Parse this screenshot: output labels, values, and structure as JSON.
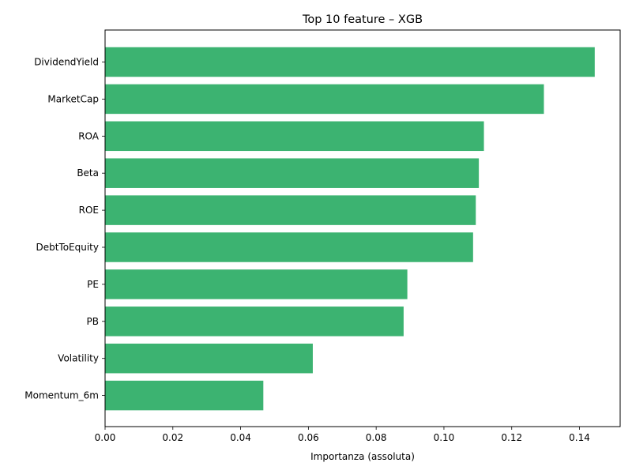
{
  "chart_data": {
    "type": "bar",
    "orientation": "horizontal",
    "title": "Top 10 feature – XGB",
    "xlabel": "Importanza (assoluta)",
    "ylabel": "",
    "xlim": [
      0,
      0.152
    ],
    "xticks": [
      "0.00",
      "0.02",
      "0.04",
      "0.06",
      "0.08",
      "0.10",
      "0.12",
      "0.14"
    ],
    "xtick_values": [
      0,
      0.02,
      0.04,
      0.06,
      0.08,
      0.1,
      0.12,
      0.14
    ],
    "categories": [
      "DividendYield",
      "MarketCap",
      "ROA",
      "Beta",
      "ROE",
      "DebtToEquity",
      "PE",
      "PB",
      "Volatility",
      "Momentum_6m"
    ],
    "values": [
      0.1445,
      0.1295,
      0.1118,
      0.1103,
      0.1094,
      0.1086,
      0.0892,
      0.0881,
      0.0613,
      0.0467
    ],
    "bar_color": "#3cb371",
    "grid": false,
    "legend": "none"
  }
}
